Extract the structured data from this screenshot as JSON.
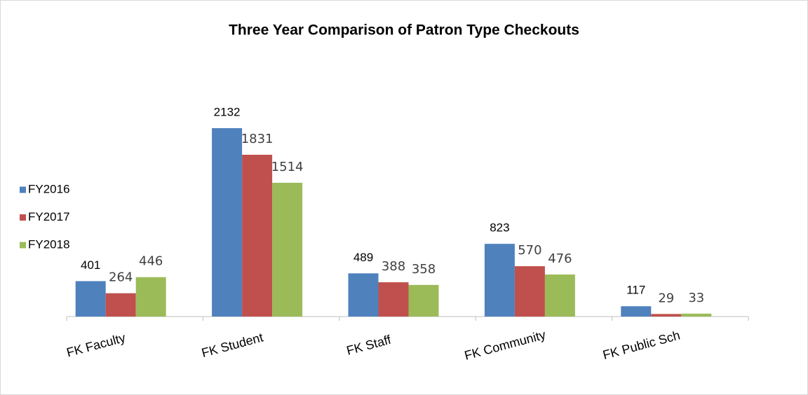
{
  "chart_data": {
    "type": "bar",
    "title": "Three Year Comparison of Patron Type Checkouts",
    "categories": [
      "FK Faculty",
      "FK Student",
      "FK Staff",
      "FK Community",
      "FK Public Sch"
    ],
    "series": [
      {
        "name": "FY2016",
        "color": "#4f81bd",
        "values": [
          401,
          2132,
          489,
          823,
          117
        ]
      },
      {
        "name": "FY2017",
        "color": "#c0504d",
        "values": [
          264,
          1831,
          388,
          570,
          29
        ]
      },
      {
        "name": "FY2018",
        "color": "#9bbb59",
        "values": [
          446,
          1514,
          358,
          476,
          33
        ]
      }
    ],
    "legend": "left"
  }
}
